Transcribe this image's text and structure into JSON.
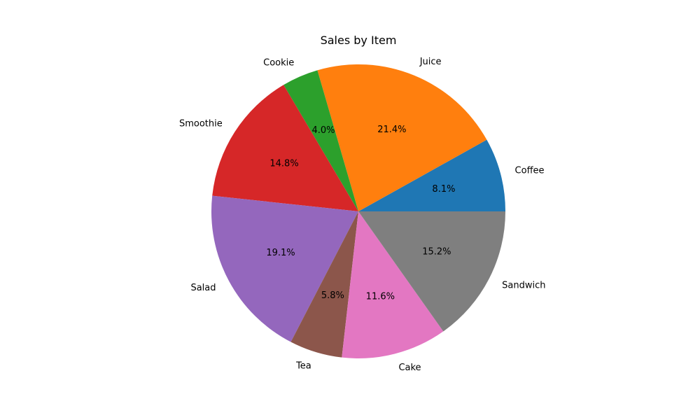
{
  "chart_data": {
    "type": "pie",
    "title": "Sales by Item",
    "categories": [
      "Coffee",
      "Juice",
      "Cookie",
      "Smoothie",
      "Salad",
      "Tea",
      "Cake",
      "Sandwich"
    ],
    "values": [
      8.1,
      21.4,
      4.0,
      14.8,
      19.1,
      5.8,
      11.6,
      15.2
    ],
    "percent_labels": [
      "8.1%",
      "21.4%",
      "4.0%",
      "14.8%",
      "19.1%",
      "5.8%",
      "11.6%",
      "15.2%"
    ],
    "colors": [
      "#1f77b4",
      "#ff7f0e",
      "#2ca02c",
      "#d62728",
      "#9467bd",
      "#8c564b",
      "#e377c2",
      "#7f7f7f"
    ],
    "start_angle_deg": 0,
    "direction": "counterclockwise",
    "legend": "none"
  }
}
